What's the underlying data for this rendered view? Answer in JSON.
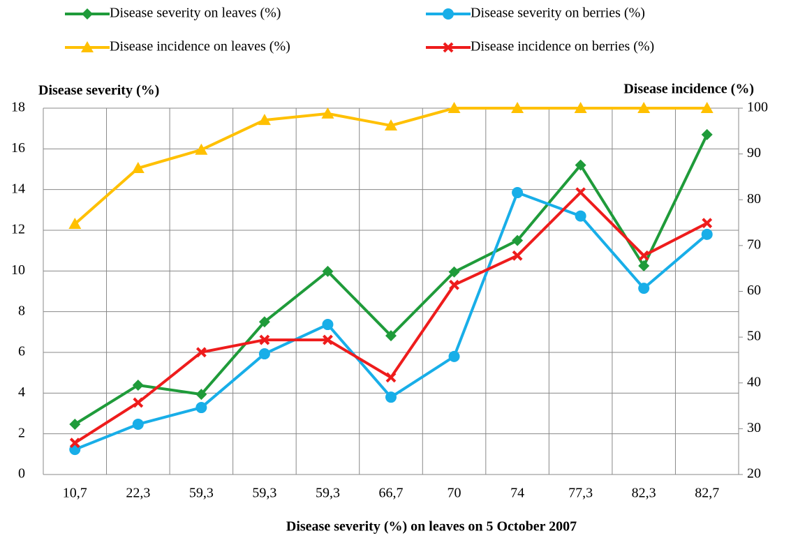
{
  "chart_data": {
    "type": "line",
    "y_label": "Disease severity (%)",
    "y2_label": "Disease incidence (%)",
    "x_label": "Disease severity (%)  on leaves on 5 October 2007",
    "categories": [
      "10,7",
      "22,3",
      "59,3",
      "59,3",
      "59,3",
      "66,7",
      "70",
      "74",
      "77,3",
      "82,3",
      "82,7"
    ],
    "ylim": [
      0,
      18
    ],
    "yticks": [
      0,
      2,
      4,
      6,
      8,
      10,
      12,
      14,
      16,
      18
    ],
    "y2lim": [
      20,
      100
    ],
    "y2ticks": [
      20,
      30,
      40,
      50,
      60,
      70,
      80,
      90,
      100
    ],
    "grid": true,
    "series": [
      {
        "name": "Disease severity on leaves (%)",
        "color": "#1f9b3a",
        "marker": "diamond",
        "values": [
          2.47,
          4.39,
          3.94,
          7.5,
          9.98,
          6.82,
          9.95,
          11.5,
          15.2,
          10.25,
          16.7
        ]
      },
      {
        "name": "Disease severity on berries (%)",
        "color": "#18aee8",
        "marker": "circle",
        "values": [
          1.23,
          2.47,
          3.29,
          5.93,
          7.37,
          3.8,
          5.8,
          13.85,
          12.7,
          9.15,
          11.8
        ]
      },
      {
        "name": "Disease incidence on leaves (%)",
        "color": "#ffc000",
        "marker": "triangle",
        "axis": "y2",
        "values": [
          74.7,
          86.9,
          90.9,
          97.4,
          98.8,
          96.2,
          100,
          100,
          100,
          100,
          100
        ]
      },
      {
        "name": "Disease incidence on berries (%)",
        "color": "#ee1c1c",
        "marker": "x",
        "axis": "y2",
        "values": [
          26.9,
          35.7,
          46.7,
          49.4,
          49.4,
          41.2,
          61.4,
          67.8,
          81.6,
          67.8,
          74.9
        ]
      }
    ]
  }
}
